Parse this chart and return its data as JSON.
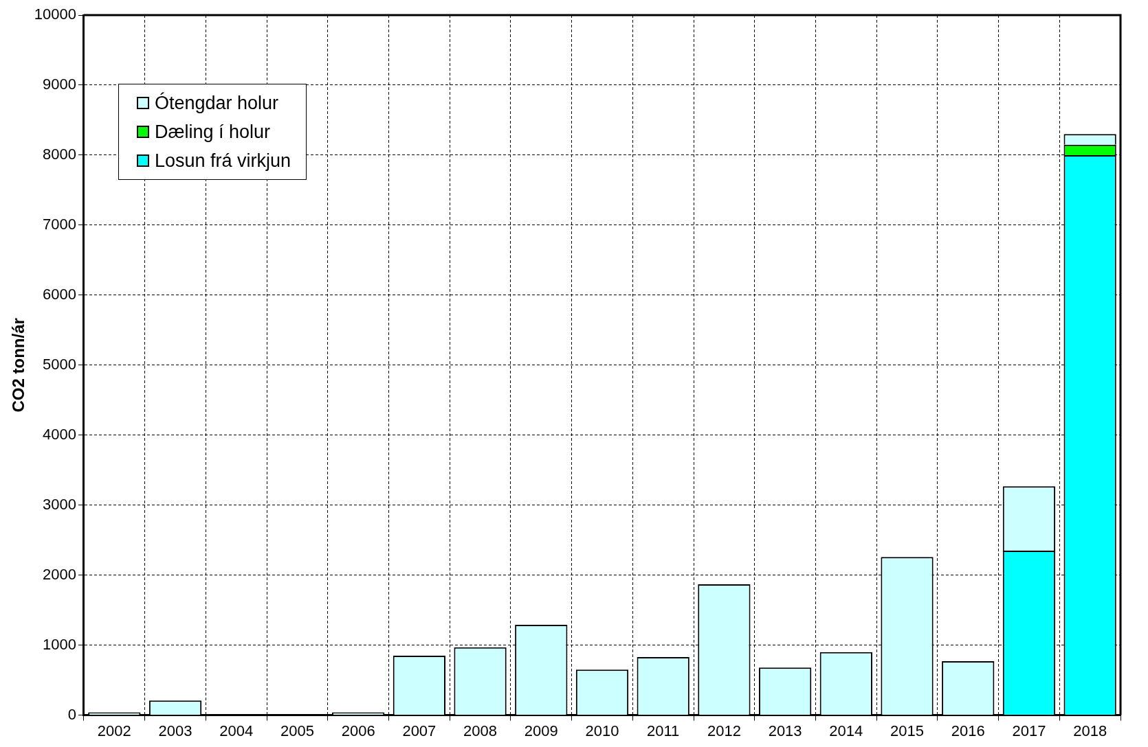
{
  "chart_data": {
    "type": "bar",
    "ylabel": "CO2 tonn/ár",
    "categories": [
      "2002",
      "2003",
      "2004",
      "2005",
      "2006",
      "2007",
      "2008",
      "2009",
      "2010",
      "2011",
      "2012",
      "2013",
      "2014",
      "2015",
      "2016",
      "2017",
      "2018"
    ],
    "series": [
      {
        "name": "Losun frá virkjun",
        "color": "#00ffff",
        "values": [
          null,
          null,
          null,
          null,
          null,
          null,
          null,
          null,
          null,
          null,
          null,
          null,
          null,
          null,
          null,
          2350,
          8000
        ]
      },
      {
        "name": "Dæling í holur",
        "color": "#00ff00",
        "values": [
          null,
          null,
          null,
          null,
          null,
          null,
          null,
          null,
          null,
          null,
          null,
          null,
          null,
          null,
          null,
          null,
          150
        ]
      },
      {
        "name": "Ótengdar holur",
        "color": "#ccffff",
        "values": [
          40,
          210,
          0,
          0,
          40,
          850,
          970,
          1290,
          650,
          830,
          1870,
          680,
          900,
          2260,
          770,
          920,
          150
        ]
      }
    ],
    "stacked": true,
    "ylim": [
      0,
      10000
    ],
    "yticks": [
      0,
      1000,
      2000,
      3000,
      4000,
      5000,
      6000,
      7000,
      8000,
      9000,
      10000
    ],
    "grid": true,
    "legend": "top left"
  }
}
